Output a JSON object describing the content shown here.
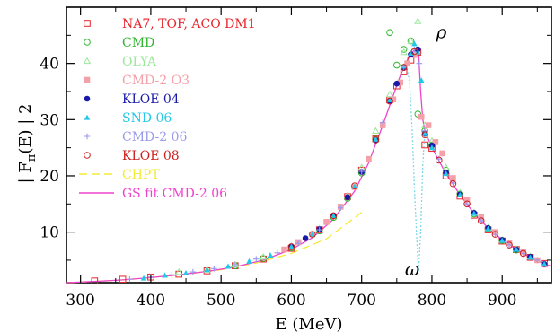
{
  "chart_data": {
    "type": "scatter",
    "xlabel": "E (MeV)",
    "ylabel_main": "| F",
    "ylabel_sub": "π",
    "ylabel_tail": "(E) | 2",
    "xlim": [
      280,
      970
    ],
    "ylim": [
      1,
      50
    ],
    "x_ticks": [
      300,
      400,
      500,
      600,
      700,
      800,
      900
    ],
    "y_ticks": [
      10,
      20,
      30,
      40
    ],
    "grid": false,
    "legend_position": "top-left",
    "annotations": [
      {
        "text": "ρ",
        "x": 806,
        "y": 44.5
      },
      {
        "text": "ω",
        "x": 782,
        "y": 2.3
      }
    ],
    "series": [
      {
        "name": "NA7, TOF, ACO DM1",
        "color": "#e8242b",
        "marker": "open-square",
        "points": [
          [
            320,
            1.3
          ],
          [
            360,
            1.6
          ],
          [
            400,
            2.0
          ],
          [
            440,
            2.5
          ],
          [
            480,
            3.1
          ],
          [
            520,
            4.0
          ],
          [
            560,
            5.2
          ],
          [
            600,
            7.1
          ],
          [
            640,
            10.4
          ],
          [
            680,
            16.3
          ],
          [
            700,
            21.0
          ],
          [
            720,
            26.6
          ],
          [
            740,
            33.5
          ],
          [
            750,
            36.0
          ],
          [
            760,
            38.5
          ],
          [
            770,
            40.6
          ],
          [
            780,
            42.0
          ],
          [
            790,
            25.5
          ],
          [
            800,
            24.9
          ],
          [
            820,
            20.0
          ],
          [
            840,
            16.4
          ],
          [
            860,
            13.0
          ],
          [
            880,
            10.4
          ],
          [
            900,
            8.4
          ],
          [
            920,
            6.9
          ],
          [
            940,
            5.5
          ],
          [
            960,
            4.4
          ]
        ]
      },
      {
        "name": "CMD",
        "color": "#2fb52f",
        "marker": "open-circle",
        "points": [
          [
            520,
            4.0
          ],
          [
            560,
            5.3
          ],
          [
            600,
            7.2
          ],
          [
            640,
            10.2
          ],
          [
            660,
            12.6
          ],
          [
            680,
            16.0
          ],
          [
            700,
            20.5
          ],
          [
            720,
            26.5
          ],
          [
            740,
            45.5
          ],
          [
            750,
            39.7
          ],
          [
            760,
            42.5
          ],
          [
            770,
            44.0
          ],
          [
            780,
            31.0
          ],
          [
            790,
            28.0
          ],
          [
            800,
            25.5
          ],
          [
            820,
            21.0
          ],
          [
            840,
            16.8
          ],
          [
            860,
            13.2
          ],
          [
            880,
            10.6
          ],
          [
            900,
            8.5
          ],
          [
            920,
            6.8
          ]
        ]
      },
      {
        "name": "OLYA",
        "color": "#9be89b",
        "marker": "open-triangle",
        "points": [
          [
            440,
            2.9
          ],
          [
            480,
            3.3
          ],
          [
            520,
            4.2
          ],
          [
            560,
            5.6
          ],
          [
            600,
            7.5
          ],
          [
            640,
            10.6
          ],
          [
            680,
            16.5
          ],
          [
            700,
            21.5
          ],
          [
            720,
            28.0
          ],
          [
            740,
            34.5
          ],
          [
            760,
            42.0
          ],
          [
            770,
            44.0
          ],
          [
            780,
            47.5
          ],
          [
            790,
            29.0
          ],
          [
            800,
            26.2
          ],
          [
            820,
            21.5
          ],
          [
            840,
            17.0
          ],
          [
            860,
            13.5
          ],
          [
            880,
            10.8
          ],
          [
            900,
            8.6
          ],
          [
            920,
            7.0
          ],
          [
            940,
            5.7
          ]
        ]
      },
      {
        "name": "CMD-2 O3",
        "color": "#f4a0a8",
        "marker": "filled-square",
        "points": [
          [
            590,
            6.9
          ],
          [
            610,
            8.2
          ],
          [
            630,
            9.6
          ],
          [
            650,
            11.8
          ],
          [
            670,
            14.5
          ],
          [
            690,
            18.0
          ],
          [
            710,
            23.0
          ],
          [
            730,
            29.0
          ],
          [
            745,
            33.6
          ],
          [
            755,
            36.6
          ],
          [
            765,
            40.0
          ],
          [
            775,
            41.5
          ],
          [
            785,
            30.5
          ],
          [
            795,
            29.0
          ],
          [
            805,
            26.0
          ],
          [
            815,
            24.0
          ],
          [
            830,
            19.6
          ],
          [
            850,
            15.8
          ],
          [
            870,
            12.6
          ],
          [
            890,
            10.0
          ],
          [
            910,
            8.0
          ],
          [
            930,
            6.5
          ],
          [
            950,
            5.0
          ],
          [
            960,
            4.2
          ]
        ]
      },
      {
        "name": "KLOE 04",
        "color": "#1a1aa8",
        "marker": "filled-circle",
        "points": [
          [
            600,
            7.4
          ],
          [
            620,
            8.9
          ],
          [
            640,
            10.5
          ],
          [
            660,
            12.9
          ],
          [
            680,
            16.2
          ],
          [
            700,
            20.7
          ],
          [
            720,
            26.3
          ],
          [
            740,
            33.4
          ],
          [
            750,
            36.4
          ],
          [
            760,
            39.2
          ],
          [
            770,
            41.6
          ],
          [
            780,
            42.5
          ],
          [
            790,
            27.5
          ],
          [
            800,
            25.4
          ],
          [
            820,
            20.6
          ],
          [
            840,
            16.7
          ],
          [
            860,
            13.4
          ],
          [
            880,
            10.7
          ],
          [
            900,
            8.6
          ],
          [
            920,
            6.9
          ],
          [
            940,
            5.6
          ],
          [
            960,
            4.3
          ]
        ]
      },
      {
        "name": "SND 06",
        "color": "#22c8e8",
        "marker": "filled-triangle",
        "points": [
          [
            390,
            1.8
          ],
          [
            420,
            2.3
          ],
          [
            450,
            2.7
          ],
          [
            480,
            3.3
          ],
          [
            510,
            3.9
          ],
          [
            540,
            4.8
          ],
          [
            570,
            5.9
          ],
          [
            600,
            7.4
          ],
          [
            630,
            9.6
          ],
          [
            660,
            12.9
          ],
          [
            690,
            18.1
          ],
          [
            720,
            26.5
          ],
          [
            740,
            33.5
          ],
          [
            760,
            39.5
          ],
          [
            770,
            41.8
          ],
          [
            775,
            43.5
          ],
          [
            780,
            42.0
          ],
          [
            785,
            37.0
          ],
          [
            790,
            27.5
          ],
          [
            800,
            25.0
          ],
          [
            820,
            20.4
          ],
          [
            840,
            16.6
          ],
          [
            860,
            13.3
          ],
          [
            880,
            10.6
          ],
          [
            900,
            8.5
          ],
          [
            920,
            6.9
          ],
          [
            940,
            5.5
          ],
          [
            960,
            4.3
          ]
        ]
      },
      {
        "name": "CMD-2 06",
        "color": "#9a9aec",
        "marker": "plus",
        "points": [
          [
            370,
            1.6
          ],
          [
            400,
            2.0
          ],
          [
            430,
            2.4
          ],
          [
            460,
            2.9
          ],
          [
            490,
            3.5
          ],
          [
            520,
            4.2
          ],
          [
            550,
            5.2
          ],
          [
            580,
            6.3
          ],
          [
            610,
            8.0
          ],
          [
            640,
            10.4
          ],
          [
            670,
            14.3
          ],
          [
            700,
            20.8
          ],
          [
            730,
            29.5
          ],
          [
            760,
            39.4
          ],
          [
            775,
            42.5
          ],
          [
            782,
            40.0
          ],
          [
            790,
            28.0
          ],
          [
            810,
            23.0
          ],
          [
            830,
            18.7
          ],
          [
            850,
            15.0
          ],
          [
            870,
            12.0
          ],
          [
            890,
            9.6
          ],
          [
            910,
            7.7
          ],
          [
            930,
            6.2
          ],
          [
            950,
            5.0
          ]
        ]
      },
      {
        "name": "KLOE 08",
        "color": "#cc2020",
        "marker": "open-circle",
        "points": [
          [
            600,
            7.4
          ],
          [
            630,
            9.6
          ],
          [
            660,
            12.9
          ],
          [
            690,
            18.2
          ],
          [
            720,
            26.4
          ],
          [
            740,
            33.3
          ],
          [
            760,
            39.3
          ],
          [
            775,
            42.1
          ],
          [
            790,
            27.3
          ],
          [
            810,
            22.8
          ],
          [
            830,
            18.6
          ],
          [
            850,
            15.0
          ],
          [
            870,
            12.0
          ],
          [
            890,
            9.6
          ],
          [
            910,
            7.7
          ],
          [
            930,
            6.2
          ]
        ]
      }
    ],
    "curves": [
      {
        "name": "CHPT",
        "color": "#f2ea38",
        "style": "dashed",
        "points": [
          [
            280,
            1.0
          ],
          [
            350,
            1.4
          ],
          [
            400,
            1.9
          ],
          [
            450,
            2.5
          ],
          [
            500,
            3.3
          ],
          [
            550,
            4.5
          ],
          [
            600,
            6.2
          ],
          [
            650,
            8.8
          ],
          [
            700,
            13.5
          ]
        ]
      },
      {
        "name": "GS fit CMD-2 06",
        "color": "#ee44cc",
        "style": "solid",
        "points": [
          [
            280,
            1.0
          ],
          [
            320,
            1.2
          ],
          [
            360,
            1.5
          ],
          [
            400,
            1.9
          ],
          [
            440,
            2.4
          ],
          [
            480,
            3.0
          ],
          [
            520,
            3.8
          ],
          [
            560,
            5.0
          ],
          [
            600,
            6.9
          ],
          [
            630,
            9.0
          ],
          [
            660,
            12.3
          ],
          [
            690,
            17.3
          ],
          [
            710,
            22.3
          ],
          [
            730,
            29.0
          ],
          [
            745,
            34.3
          ],
          [
            755,
            37.8
          ],
          [
            765,
            40.6
          ],
          [
            772,
            42.0
          ],
          [
            778,
            42.7
          ],
          [
            781,
            42.0
          ],
          [
            784,
            35.0
          ],
          [
            787,
            30.0
          ],
          [
            790,
            28.0
          ],
          [
            800,
            25.0
          ],
          [
            820,
            20.4
          ],
          [
            840,
            16.6
          ],
          [
            860,
            13.3
          ],
          [
            880,
            10.7
          ],
          [
            900,
            8.6
          ],
          [
            920,
            6.9
          ],
          [
            940,
            5.5
          ],
          [
            960,
            4.3
          ],
          [
            970,
            3.9
          ]
        ]
      },
      {
        "name": "",
        "color": "#7fd8e8",
        "style": "dotted",
        "points": [
          [
            755,
            38.0
          ],
          [
            763,
            40.0
          ],
          [
            768,
            37.0
          ],
          [
            772,
            28.0
          ],
          [
            775,
            18.0
          ],
          [
            778,
            10.0
          ],
          [
            781,
            3.0
          ],
          [
            784,
            10.0
          ],
          [
            787,
            22.0
          ],
          [
            790,
            28.0
          ],
          [
            795,
            26.5
          ]
        ]
      }
    ]
  }
}
